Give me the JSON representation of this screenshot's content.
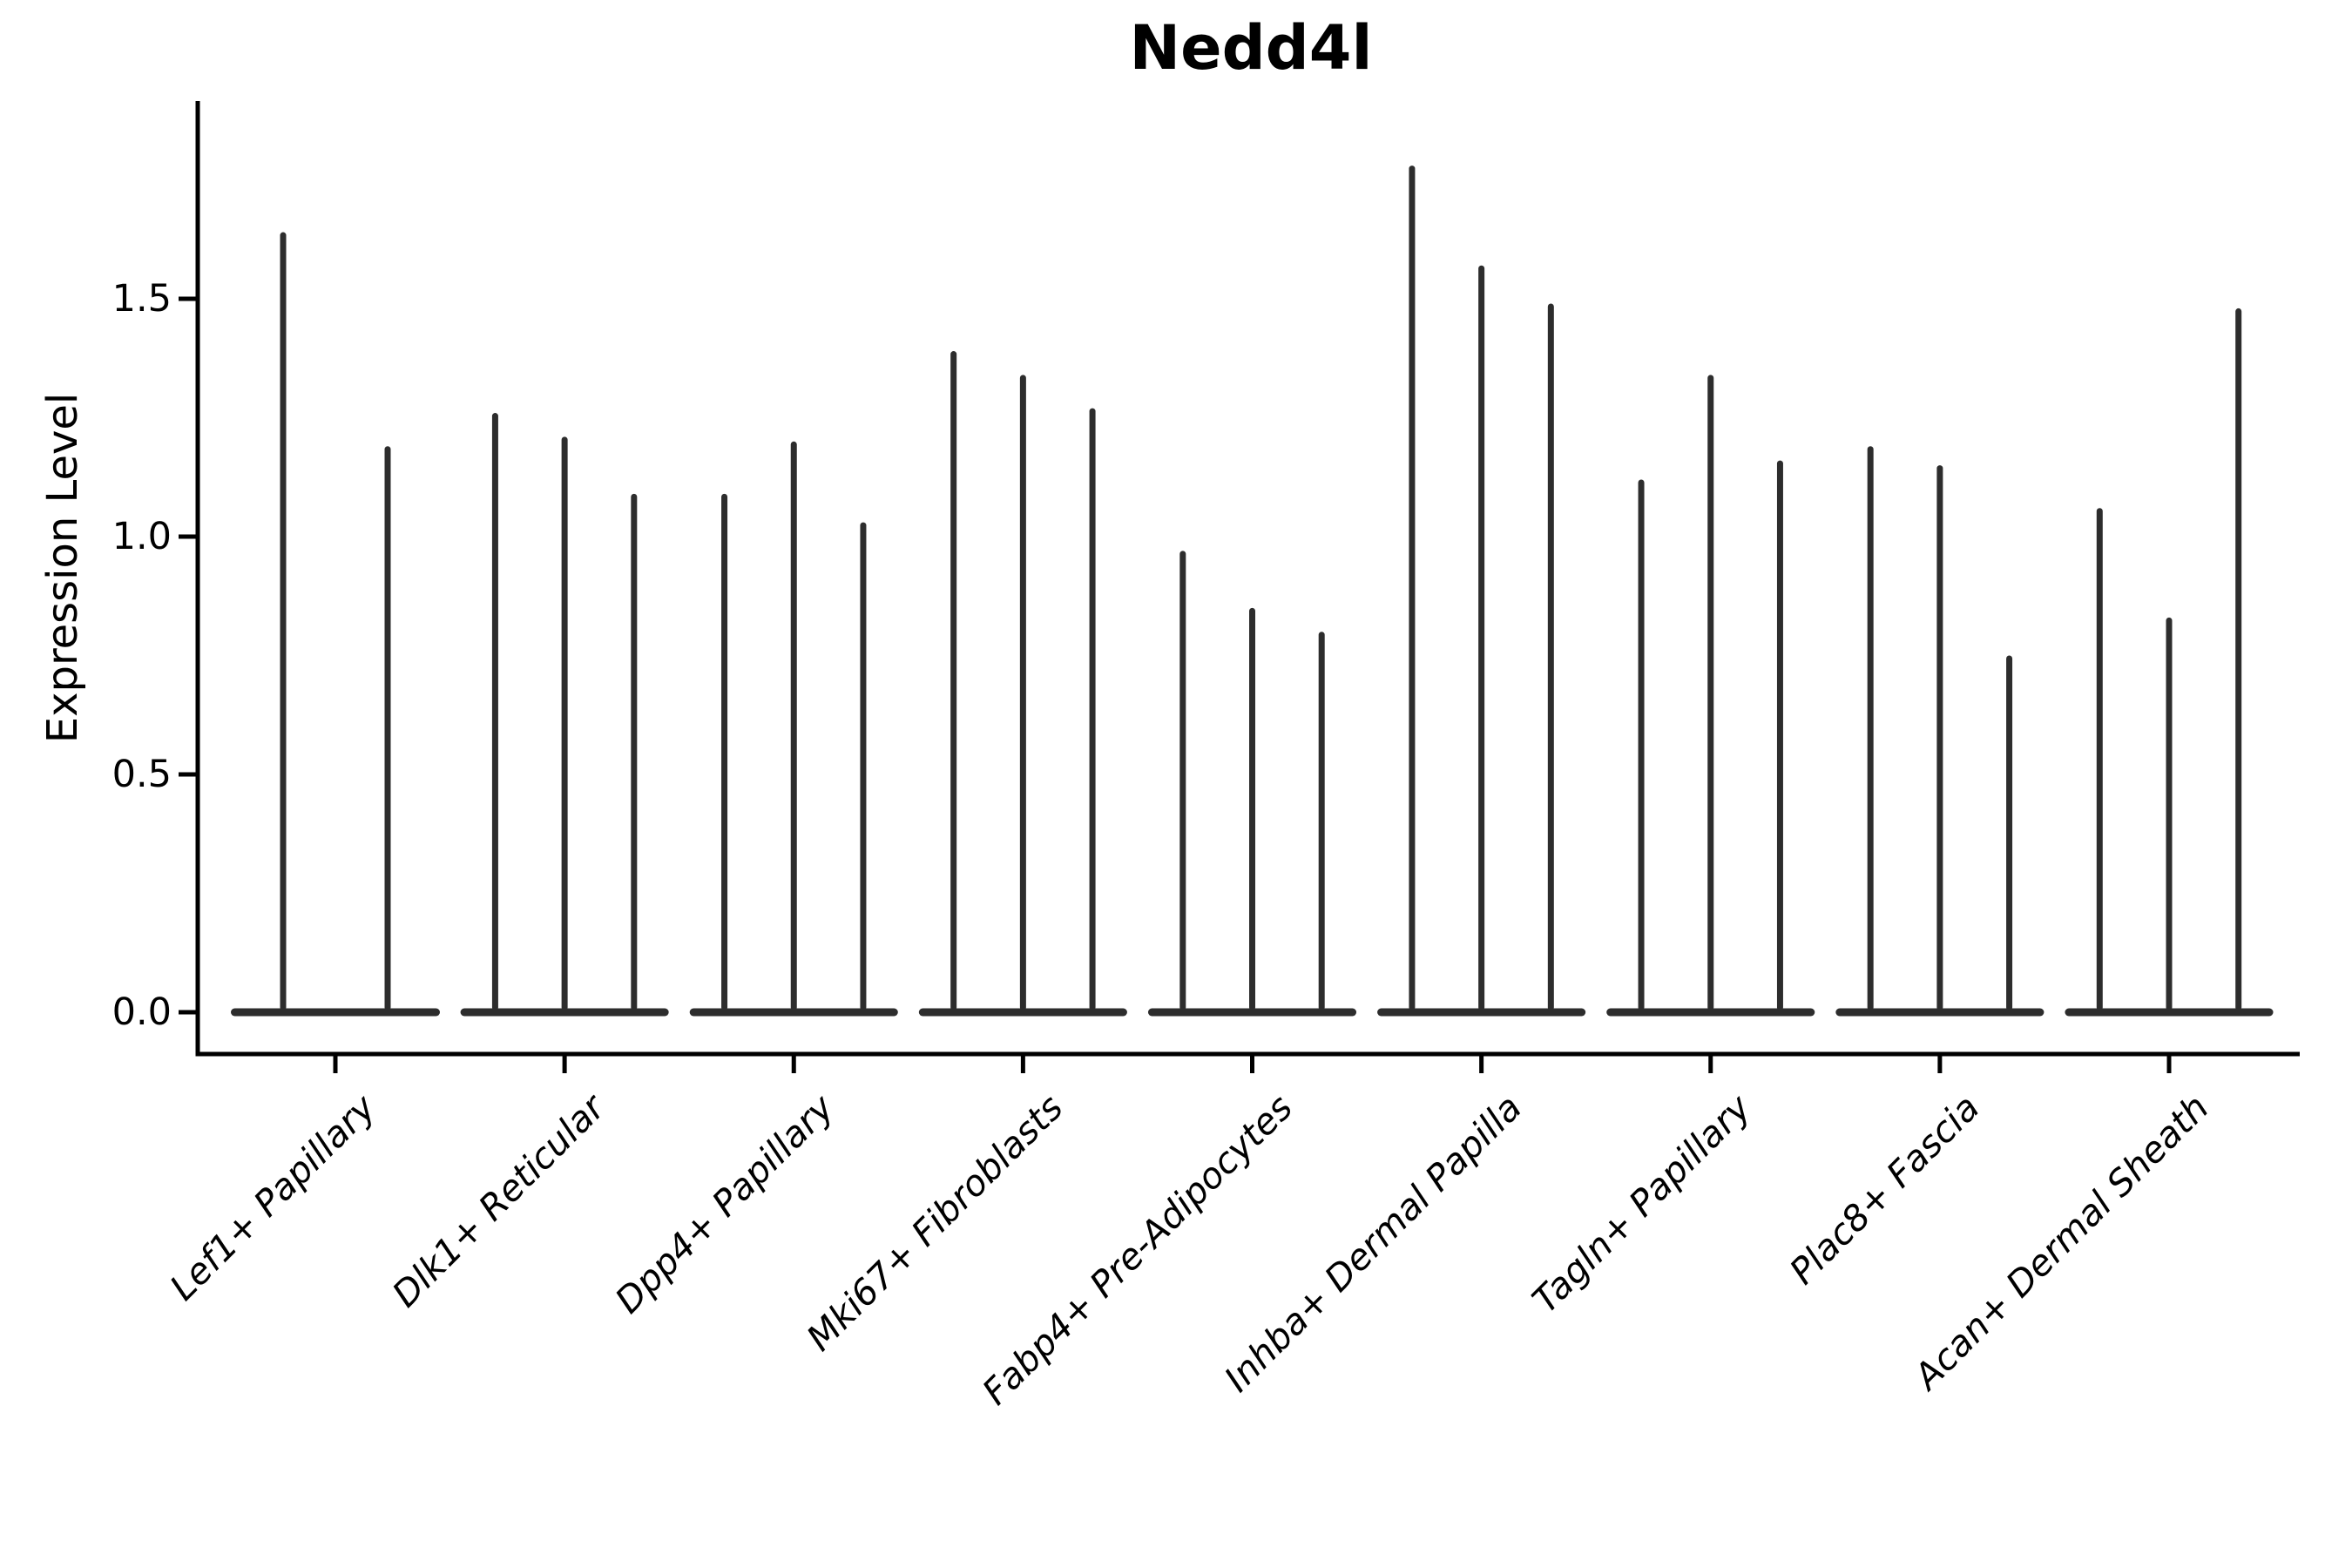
{
  "title": "Nedd4l",
  "chart_data": {
    "type": "violin",
    "title": "Nedd4l",
    "xlabel": "",
    "ylabel": "Expression Level",
    "ylim": [
      -0.09,
      1.92
    ],
    "yticks": [
      0.0,
      0.5,
      1.0,
      1.5
    ],
    "ytick_labels": [
      "0.0",
      "0.5",
      "1.0",
      "1.5"
    ],
    "grid": false,
    "legend": "none",
    "xtick_label_rotation_deg": 45,
    "categories": [
      "Lef1+ Papillary",
      "Dlk1+ Reticular",
      "Dpp4+ Papillary",
      "Mki67+ Fibroblasts",
      "Fabp4+ Pre-Adipocytes",
      "Inhba+ Dermal Papilla",
      "Tagln+ Papillary",
      "Plac8+ Fascia",
      "Acan+ Dermal Sheath"
    ],
    "description": "Violin plot; each category holds 2-3 narrow violins whose mass sits at 0 with a thin spike rising to the listed maximum expression value",
    "groups": [
      {
        "label": "Lef1+ Papillary",
        "violin_max": [
          1.64,
          1.19
        ]
      },
      {
        "label": "Dlk1+ Reticular",
        "violin_max": [
          1.26,
          1.21,
          1.09
        ]
      },
      {
        "label": "Dpp4+ Papillary",
        "violin_max": [
          1.09,
          1.2,
          1.03
        ]
      },
      {
        "label": "Mki67+ Fibroblasts",
        "violin_max": [
          1.39,
          1.34,
          1.27
        ]
      },
      {
        "label": "Fabp4+ Pre-Adipocytes",
        "violin_max": [
          0.97,
          0.85,
          0.8
        ]
      },
      {
        "label": "Inhba+ Dermal Papilla",
        "violin_max": [
          1.78,
          1.57,
          1.49
        ]
      },
      {
        "label": "Tagln+ Papillary",
        "violin_max": [
          1.12,
          1.34,
          1.16
        ]
      },
      {
        "label": "Plac8+ Fascia",
        "violin_max": [
          1.19,
          1.15,
          0.75
        ]
      },
      {
        "label": "Acan+ Dermal Sheath",
        "violin_max": [
          1.06,
          0.83,
          1.48
        ]
      }
    ],
    "colors": {
      "violin": "#2d2d2d",
      "axis": "#000000",
      "text": "#000000",
      "background": "#ffffff"
    }
  }
}
